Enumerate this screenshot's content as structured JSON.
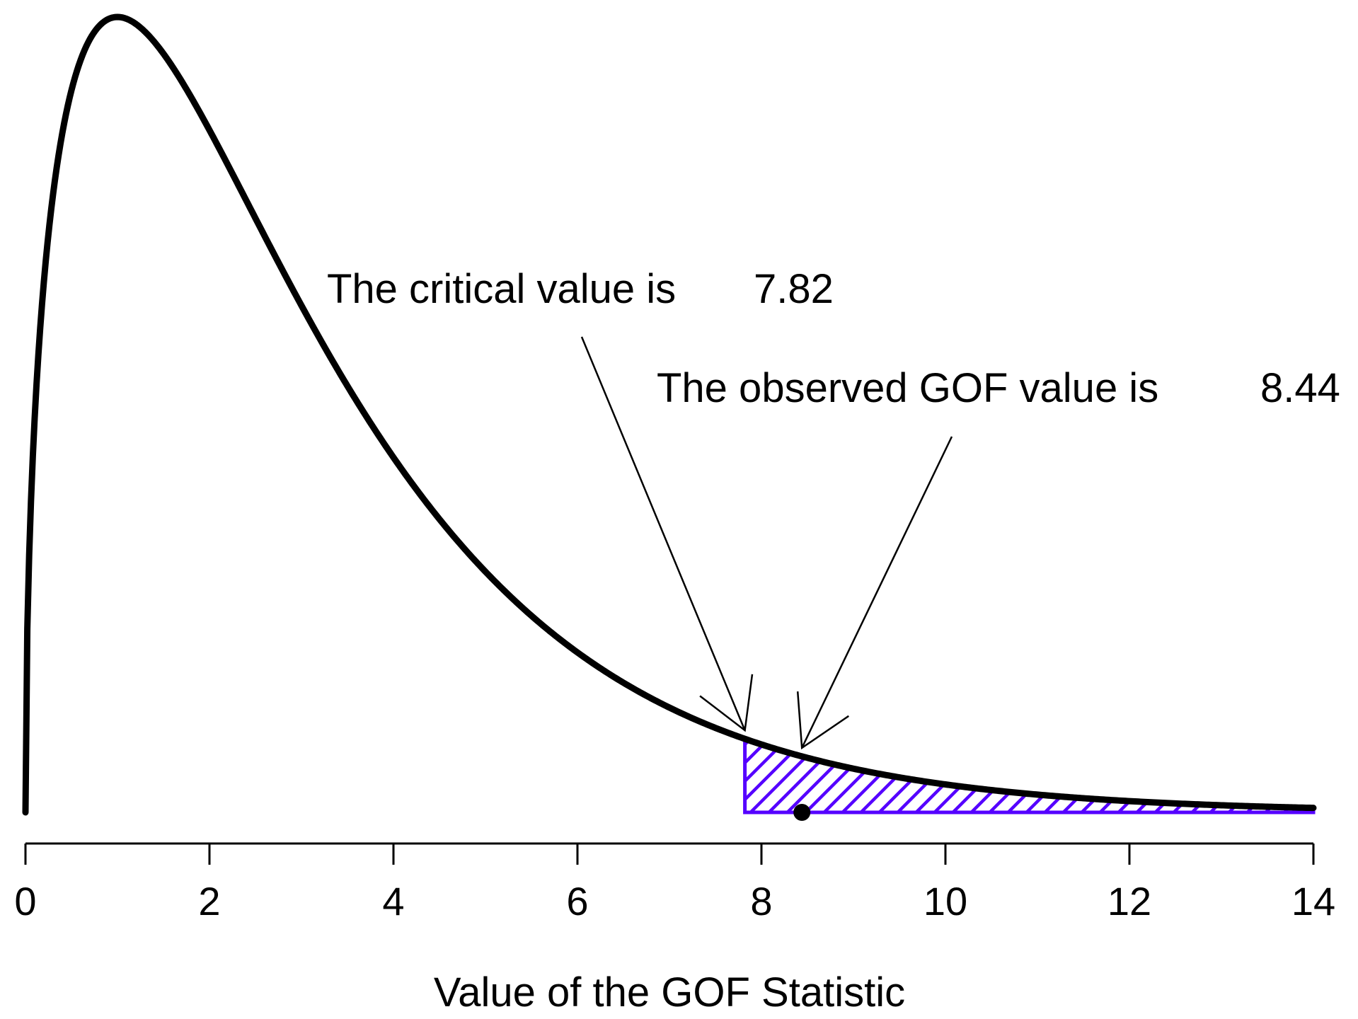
{
  "chart_data": {
    "type": "area",
    "distribution": "chi-square",
    "degrees_of_freedom": 3,
    "xlabel": "Value of the GOF Statistic",
    "ylabel": "",
    "xlim": [
      0,
      14
    ],
    "x_ticks": [
      0,
      2,
      4,
      6,
      8,
      10,
      12,
      14
    ],
    "x_tick_labels": [
      "0",
      "2",
      "4",
      "6",
      "8",
      "10",
      "12",
      "14"
    ],
    "critical_value": 7.82,
    "observed_value": 8.44,
    "rejection_region": [
      7.82,
      14
    ],
    "colors": {
      "curve": "#000000",
      "rejection_region": "#5500ff",
      "observed_point": "#000000"
    },
    "annotations": [
      {
        "label": "The critical value is",
        "value": "7.82",
        "points_to": 7.82
      },
      {
        "label": "The observed GOF value is",
        "value": "8.44",
        "points_to": 8.44
      }
    ]
  }
}
